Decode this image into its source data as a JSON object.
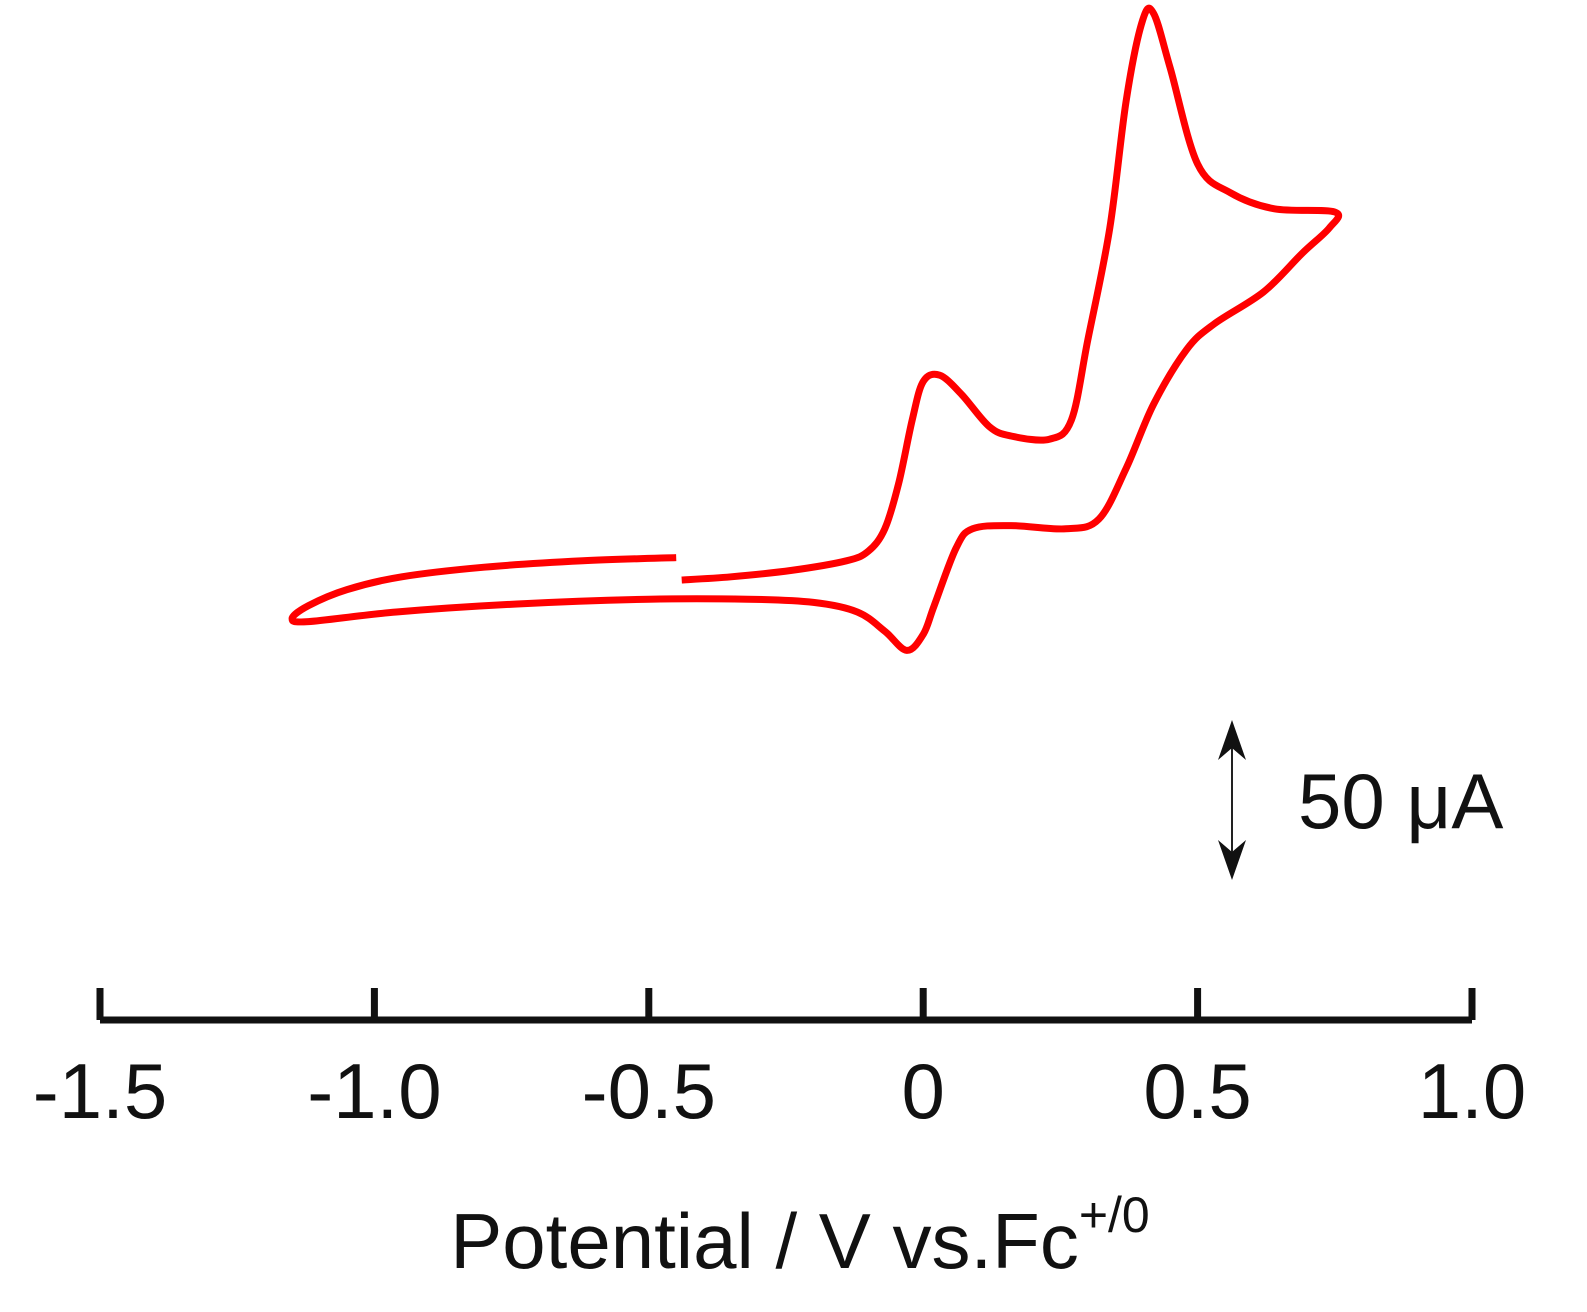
{
  "chart_data": {
    "type": "line",
    "title": "",
    "xlabel": {
      "main": "Potential / V vs.Fc",
      "superscript": "+/0"
    },
    "ylabel": "",
    "xlim": [
      -1.5,
      1.0
    ],
    "x_ticks": [
      {
        "value": -1.5,
        "label": "-1.5"
      },
      {
        "value": -1.0,
        "label": "-1.0"
      },
      {
        "value": -0.5,
        "label": "-0.5"
      },
      {
        "value": 0,
        "label": "0"
      },
      {
        "value": 0.5,
        "label": "0.5"
      },
      {
        "value": 1.0,
        "label": "1.0"
      }
    ],
    "y_axis_shown": false,
    "grid": false,
    "legend": "none",
    "scale_bar": {
      "label": "50 μA",
      "value_uA": 50
    },
    "series": [
      {
        "color": "#ff0000",
        "unit_y": "μA",
        "points": [
          [
            -0.44,
            0.0
          ],
          [
            -0.35,
            1.0
          ],
          [
            -0.24,
            3.0
          ],
          [
            -0.14,
            6.0
          ],
          [
            -0.1,
            9.0
          ],
          [
            -0.07,
            16.0
          ],
          [
            -0.045,
            30.0
          ],
          [
            -0.02,
            50.0
          ],
          [
            0.0,
            62.0
          ],
          [
            0.03,
            64.0
          ],
          [
            0.07,
            58.0
          ],
          [
            0.12,
            48.0
          ],
          [
            0.16,
            45.0
          ],
          [
            0.23,
            44.0
          ],
          [
            0.27,
            50.0
          ],
          [
            0.3,
            75.0
          ],
          [
            0.34,
            110.0
          ],
          [
            0.37,
            150.0
          ],
          [
            0.4,
            175.0
          ],
          [
            0.42,
            177.0
          ],
          [
            0.45,
            160.0
          ],
          [
            0.5,
            130.0
          ],
          [
            0.56,
            121.0
          ],
          [
            0.64,
            116.0
          ],
          [
            0.75,
            115.0
          ],
          [
            0.74,
            110.0
          ],
          [
            0.69,
            102.0
          ],
          [
            0.62,
            90.0
          ],
          [
            0.53,
            80.0
          ],
          [
            0.48,
            72.0
          ],
          [
            0.42,
            55.0
          ],
          [
            0.37,
            35.0
          ],
          [
            0.32,
            19.0
          ],
          [
            0.26,
            16.0
          ],
          [
            0.16,
            17.0
          ],
          [
            0.09,
            16.0
          ],
          [
            0.06,
            10.0
          ],
          [
            0.02,
            -8.0
          ],
          [
            0.0,
            -17.0
          ],
          [
            -0.03,
            -22.0
          ],
          [
            -0.07,
            -16.0
          ],
          [
            -0.12,
            -10.0
          ],
          [
            -0.2,
            -7.0
          ],
          [
            -0.32,
            -6.0
          ],
          [
            -0.5,
            -6.0
          ],
          [
            -0.74,
            -7.5
          ],
          [
            -0.96,
            -10.0
          ],
          [
            -1.12,
            -13.0
          ],
          [
            -1.15,
            -12.0
          ],
          [
            -1.12,
            -8.0
          ],
          [
            -1.05,
            -3.0
          ],
          [
            -0.95,
            1.0
          ],
          [
            -0.8,
            4.0
          ],
          [
            -0.62,
            6.0
          ],
          [
            -0.45,
            7.0
          ]
        ]
      }
    ]
  }
}
